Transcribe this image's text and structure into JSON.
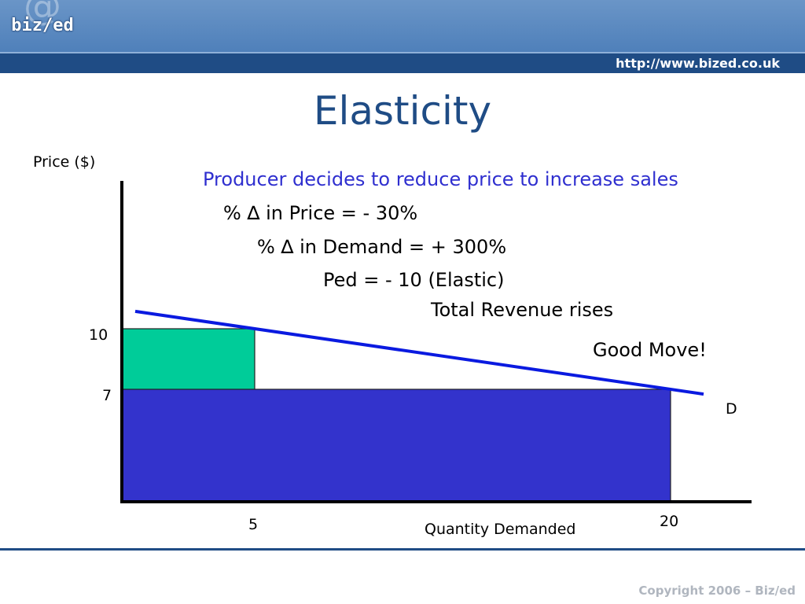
{
  "header": {
    "logo_text": "biz/ed",
    "logo_symbol": "@",
    "url": "http://www.bized.co.uk"
  },
  "slide": {
    "title": "Elasticity",
    "annotations": {
      "line1": "Producer decides to reduce price to increase sales",
      "line2": "% ∆ in Price =  - 30%",
      "line3": "% ∆ in Demand = + 300%",
      "line4": "Ped = - 10 (Elastic)",
      "line5": "Total Revenue rises",
      "line6": "Good Move!"
    }
  },
  "chart_data": {
    "type": "area",
    "ylabel": "Price ($)",
    "xlabel": "Quantity Demanded",
    "y_ticks": [
      "10",
      "7"
    ],
    "x_ticks": [
      "5",
      "20"
    ],
    "curve_label": "D",
    "demand_line": {
      "name": "D",
      "color": "#0a1ae0"
    },
    "revenue_boxes": [
      {
        "price": 10,
        "quantity": 5,
        "color": "#00cc99"
      },
      {
        "price": 7,
        "quantity": 20,
        "color": "#3333cc"
      }
    ],
    "points": [
      {
        "quantity": 5,
        "price": 10
      },
      {
        "quantity": 20,
        "price": 7
      }
    ]
  },
  "footer": {
    "copyright": "Copyright 2006 – Biz/ed"
  }
}
